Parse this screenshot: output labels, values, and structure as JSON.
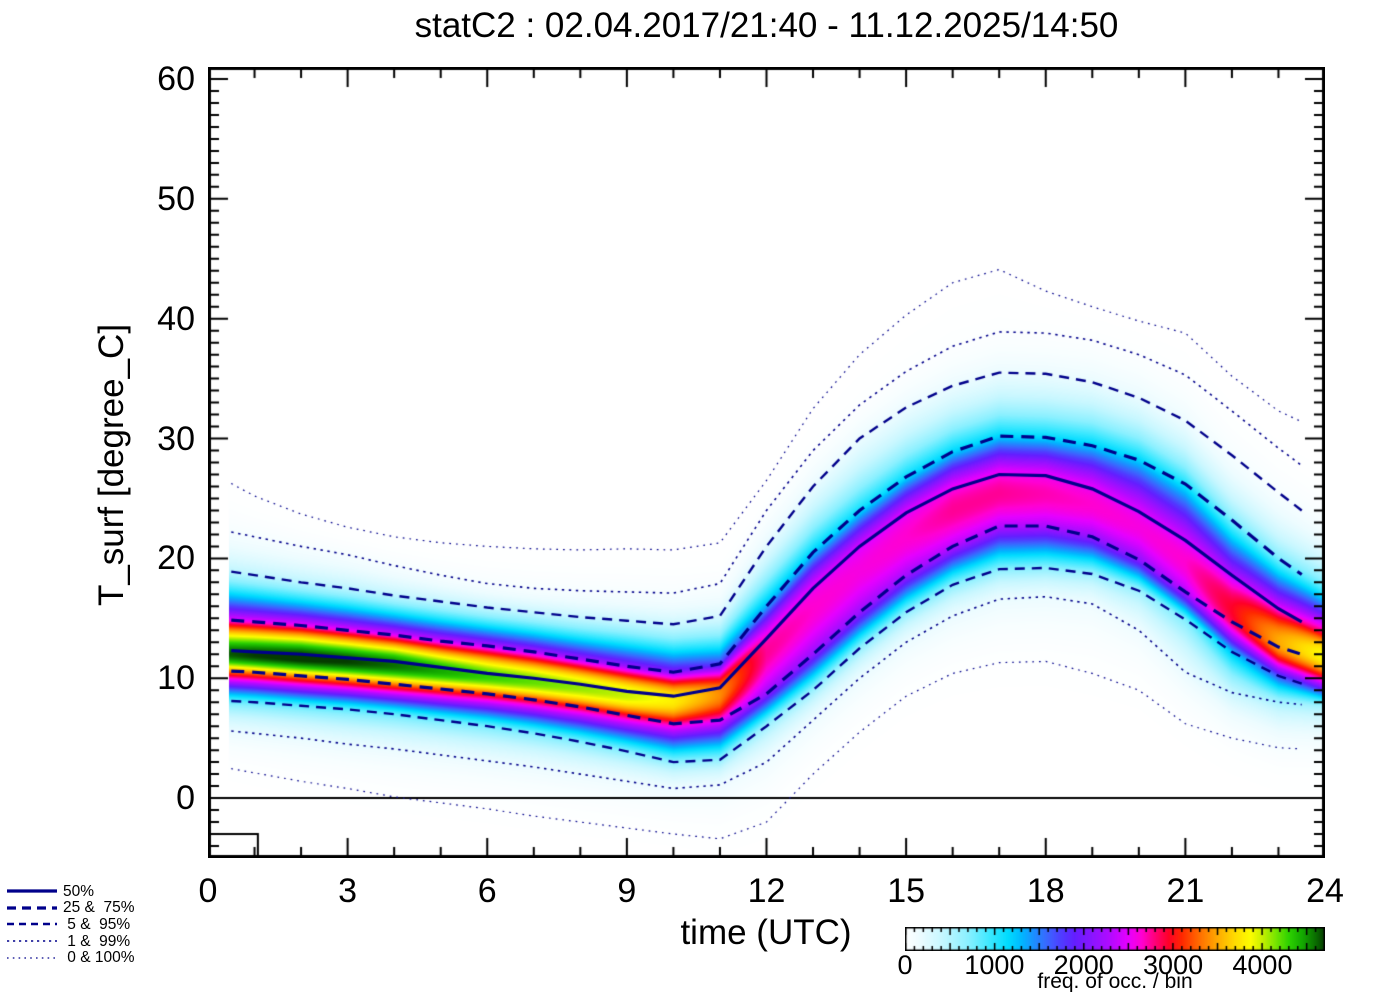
{
  "title": "statC2 : 02.04.2017/21:40 - 11.12.2025/14:50",
  "legend": {
    "items": [
      {
        "label": "50%",
        "dash": [],
        "width": 3.2
      },
      {
        "label": "25 &  75%",
        "dash": [
          9,
          6
        ],
        "width": 3.2
      },
      {
        "label": " 5 &  95%",
        "dash": [
          7,
          5
        ],
        "width": 2.4
      },
      {
        "label": " 1 &  99%",
        "dash": [
          2.2,
          3.8
        ],
        "width": 1.6
      },
      {
        "label": " 0 & 100%",
        "dash": [
          1.6,
          4.2
        ],
        "width": 1.2
      }
    ]
  },
  "chart_data": {
    "type": "heatmap",
    "axes": {
      "x": {
        "label": "time (UTC)",
        "min": 0,
        "max": 24,
        "major_ticks": [
          0,
          3,
          6,
          9,
          12,
          15,
          18,
          21,
          24
        ],
        "minor_step": 1
      },
      "y": {
        "label": "T_surf [degree_C]",
        "min": -5,
        "max": 61,
        "major_ticks": [
          0,
          10,
          20,
          30,
          40,
          50,
          60
        ],
        "minor_step": 1
      }
    },
    "x": [
      0,
      1,
      2,
      3,
      4,
      5,
      6,
      7,
      8,
      9,
      10,
      11,
      12,
      13,
      14,
      15,
      16,
      17,
      18,
      19,
      20,
      21,
      22,
      23,
      24
    ],
    "percentile_order": [
      "p0",
      "p1",
      "p5",
      "p25",
      "p50",
      "p75",
      "p95",
      "p99",
      "p100"
    ],
    "percentile_labels": {
      "p0": "0%",
      "p1": "1%",
      "p5": "5%",
      "p25": "25%",
      "p50": "50%",
      "p75": "75%",
      "p95": "95%",
      "p99": "99%",
      "p100": "100%"
    },
    "percentiles": {
      "p0": [
        2.8,
        2.1,
        1.4,
        0.8,
        0.1,
        -0.4,
        -0.9,
        -1.5,
        -2.0,
        -2.5,
        -3.0,
        -3.4,
        -2.0,
        2.0,
        5.5,
        8.5,
        10.4,
        11.3,
        11.4,
        10.4,
        9.0,
        6.2,
        5.0,
        4.2,
        4.0
      ],
      "p1": [
        5.8,
        5.4,
        5.0,
        4.5,
        4.1,
        3.6,
        3.1,
        2.6,
        2.0,
        1.4,
        0.8,
        1.1,
        3.0,
        6.5,
        10.0,
        13.0,
        15.2,
        16.6,
        16.8,
        16.2,
        14.0,
        10.5,
        8.8,
        8.0,
        7.6
      ],
      "p5": [
        8.2,
        8.0,
        7.7,
        7.4,
        7.0,
        6.5,
        6.0,
        5.4,
        4.7,
        3.9,
        3.0,
        3.2,
        6.0,
        9.0,
        12.5,
        15.5,
        17.8,
        19.1,
        19.2,
        18.7,
        17.3,
        14.9,
        12.2,
        10.2,
        8.9
      ],
      "p25": [
        10.7,
        10.5,
        10.2,
        9.9,
        9.5,
        9.1,
        8.7,
        8.2,
        7.6,
        6.9,
        6.2,
        6.5,
        8.7,
        12.0,
        15.5,
        18.6,
        21.0,
        22.7,
        22.7,
        21.8,
        19.9,
        17.2,
        14.7,
        12.6,
        11.4
      ],
      "p50": [
        12.4,
        12.2,
        12.0,
        11.7,
        11.4,
        10.9,
        10.4,
        10.0,
        9.5,
        8.9,
        8.5,
        9.2,
        13.3,
        17.5,
        21.0,
        23.8,
        25.8,
        27.0,
        26.9,
        25.8,
        23.9,
        21.5,
        18.6,
        15.8,
        13.6
      ],
      "p75": [
        15.0,
        14.7,
        14.4,
        14.0,
        13.6,
        13.1,
        12.7,
        12.2,
        11.6,
        11.0,
        10.5,
        11.2,
        16.0,
        20.5,
        24.0,
        26.8,
        28.9,
        30.2,
        30.1,
        29.4,
        28.2,
        26.2,
        23.2,
        20.0,
        17.3
      ],
      "p95": [
        19.2,
        18.6,
        18.0,
        17.5,
        16.9,
        16.4,
        15.9,
        15.5,
        15.1,
        14.8,
        14.5,
        15.2,
        21.0,
        26.0,
        30.0,
        32.6,
        34.4,
        35.5,
        35.4,
        34.7,
        33.4,
        31.5,
        28.6,
        25.5,
        22.5
      ],
      "p99": [
        22.6,
        21.8,
        21.0,
        20.3,
        19.4,
        18.6,
        17.9,
        17.5,
        17.3,
        17.2,
        17.1,
        17.9,
        24.0,
        29.0,
        32.8,
        35.6,
        37.7,
        38.9,
        38.8,
        38.2,
        37.0,
        35.3,
        32.3,
        29.2,
        26.3
      ],
      "p100": [
        27.3,
        25.2,
        23.7,
        22.6,
        21.8,
        21.3,
        21.0,
        20.8,
        20.7,
        20.8,
        20.7,
        21.3,
        26.5,
        32.5,
        37.0,
        40.3,
        43.0,
        44.1,
        42.3,
        41.0,
        39.8,
        38.8,
        35.2,
        32.3,
        30.5
      ]
    },
    "z_anchors": [
      -3.6,
      -2.7,
      -2.0,
      -0.95,
      0,
      0.95,
      2.0,
      2.7,
      3.6
    ],
    "peak_freq": [
      4600,
      4700,
      4750,
      4700,
      4600,
      4450,
      4300,
      4200,
      4100,
      4000,
      3800,
      3400,
      2750,
      2650,
      2600,
      2650,
      2750,
      2750,
      2700,
      2650,
      2600,
      2650,
      2950,
      3500,
      3900
    ],
    "mode_z_offset": [
      -0.15,
      -0.15,
      -0.15,
      -0.15,
      -0.15,
      -0.15,
      -0.15,
      -0.15,
      -0.15,
      -0.15,
      -0.15,
      -0.2,
      -0.25,
      -0.3,
      -0.35,
      -0.35,
      -0.35,
      -0.35,
      -0.35,
      -0.3,
      -0.3,
      -0.4,
      -0.7,
      -0.8,
      -0.75
    ],
    "data_t_start": 0.5,
    "data_t_end": 23.5,
    "line_color": "#00008b",
    "line_styles": {
      "p50": {
        "width": 3.2,
        "dash": []
      },
      "p25": {
        "width": 3.2,
        "dash": [
          13,
          8
        ]
      },
      "p75": {
        "width": 3.2,
        "dash": [
          13,
          8
        ]
      },
      "p5": {
        "width": 2.4,
        "dash": [
          10,
          7
        ]
      },
      "p95": {
        "width": 2.4,
        "dash": [
          10,
          7
        ]
      },
      "p1": {
        "width": 1.6,
        "dash": [
          2.4,
          4.6
        ]
      },
      "p99": {
        "width": 1.6,
        "dash": [
          2.4,
          4.6
        ]
      },
      "p0": {
        "width": 1.2,
        "dash": [
          1.7,
          5.0
        ]
      },
      "p100": {
        "width": 1.2,
        "dash": [
          1.7,
          5.0
        ]
      }
    },
    "zero_line": {
      "value": 0,
      "color": "#000000"
    },
    "bin_box": {
      "t0": 0,
      "t1": 1.05,
      "T0": -5,
      "T1": -3
    },
    "colorbar": {
      "label": "freq. of occ. / bin",
      "min": 0,
      "max": 4700,
      "ticks": [
        0,
        1000,
        2000,
        3000,
        4000
      ],
      "minor_tick_step": 100,
      "stops": [
        [
          0,
          "#ffffff"
        ],
        [
          150,
          "#eefcff"
        ],
        [
          400,
          "#c8f7ff"
        ],
        [
          700,
          "#8af0ff"
        ],
        [
          950,
          "#3ae8ff"
        ],
        [
          1150,
          "#00dcff"
        ],
        [
          1300,
          "#00b8ff"
        ],
        [
          1450,
          "#1e8cff"
        ],
        [
          1600,
          "#3c64ff"
        ],
        [
          1750,
          "#503cff"
        ],
        [
          1900,
          "#641eff"
        ],
        [
          2100,
          "#8c14ff"
        ],
        [
          2300,
          "#b40aff"
        ],
        [
          2500,
          "#e600ff"
        ],
        [
          2650,
          "#ff00d2"
        ],
        [
          2800,
          "#ff0078"
        ],
        [
          2950,
          "#ff0028"
        ],
        [
          3100,
          "#ff2800"
        ],
        [
          3300,
          "#ff6e00"
        ],
        [
          3500,
          "#ffaa00"
        ],
        [
          3700,
          "#ffdc00"
        ],
        [
          3870,
          "#fdfd00"
        ],
        [
          4000,
          "#c8f000"
        ],
        [
          4150,
          "#78e600"
        ],
        [
          4300,
          "#2ed200"
        ],
        [
          4450,
          "#14aa00"
        ],
        [
          4600,
          "#0a6e00"
        ],
        [
          4700,
          "#053c00"
        ]
      ]
    }
  }
}
